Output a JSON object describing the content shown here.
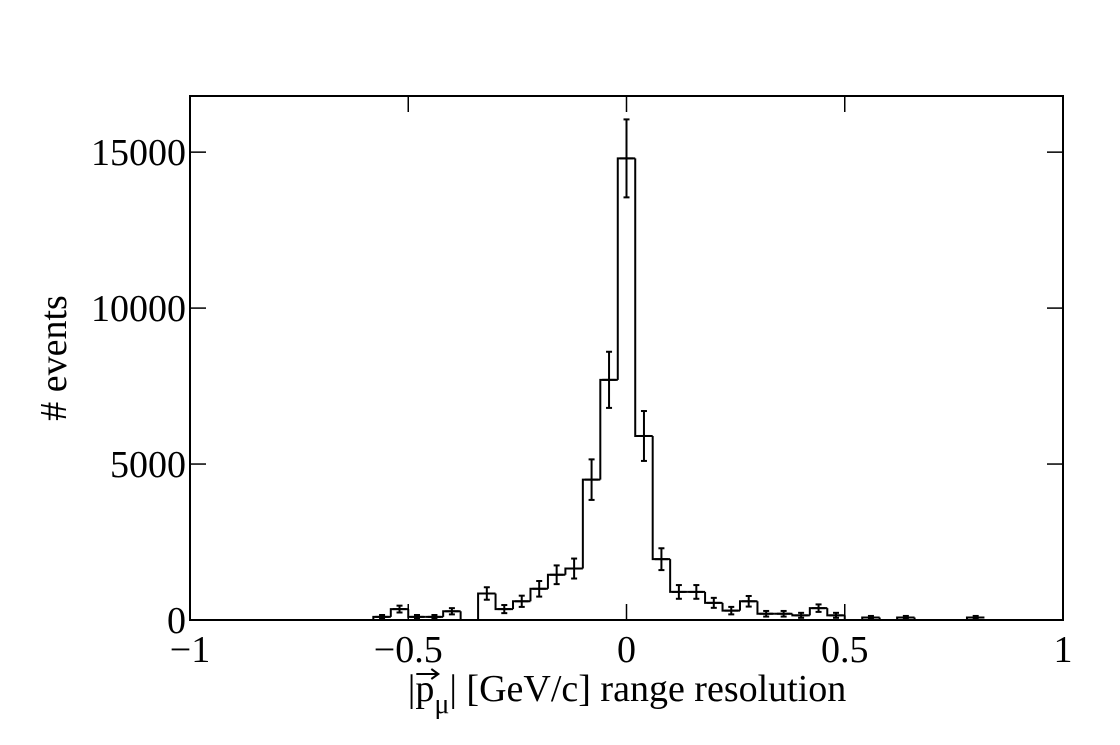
{
  "chart_data": {
    "type": "bar",
    "style": "step-histogram-with-error-bars",
    "title": "",
    "xlabel": "|p⃗μ| [GeV/c] range resolution",
    "xlabel_parts": {
      "prefix": "|",
      "vector": "p",
      "subscript": "μ",
      "suffix": "| [GeV/c] range resolution"
    },
    "ylabel": "# events",
    "xlim": [
      -1,
      1
    ],
    "ylim": [
      0,
      16800
    ],
    "x_ticks": [
      -1,
      -0.5,
      0,
      0.5,
      1
    ],
    "x_tick_labels": [
      "−1",
      "−0.5",
      "0",
      "0.5",
      "1"
    ],
    "y_ticks": [
      0,
      5000,
      10000,
      15000
    ],
    "y_tick_labels": [
      "0",
      "5000",
      "10000",
      "15000"
    ],
    "grid": false,
    "legend": "none",
    "bin_width": 0.04,
    "bins": [
      {
        "x": -0.56,
        "y": 100,
        "err": 60
      },
      {
        "x": -0.52,
        "y": 350,
        "err": 110
      },
      {
        "x": -0.48,
        "y": 100,
        "err": 60
      },
      {
        "x": -0.44,
        "y": 100,
        "err": 60
      },
      {
        "x": -0.4,
        "y": 280,
        "err": 100
      },
      {
        "x": -0.36,
        "y": 0,
        "err": 0
      },
      {
        "x": -0.32,
        "y": 850,
        "err": 200
      },
      {
        "x": -0.28,
        "y": 350,
        "err": 130
      },
      {
        "x": -0.24,
        "y": 600,
        "err": 180
      },
      {
        "x": -0.2,
        "y": 1000,
        "err": 250
      },
      {
        "x": -0.16,
        "y": 1450,
        "err": 300
      },
      {
        "x": -0.12,
        "y": 1650,
        "err": 320
      },
      {
        "x": -0.08,
        "y": 4500,
        "err": 650
      },
      {
        "x": -0.04,
        "y": 7700,
        "err": 900
      },
      {
        "x": 0.0,
        "y": 14800,
        "err": 1250
      },
      {
        "x": 0.04,
        "y": 5900,
        "err": 800
      },
      {
        "x": 0.08,
        "y": 1950,
        "err": 350
      },
      {
        "x": 0.12,
        "y": 900,
        "err": 220
      },
      {
        "x": 0.16,
        "y": 900,
        "err": 220
      },
      {
        "x": 0.2,
        "y": 550,
        "err": 160
      },
      {
        "x": 0.24,
        "y": 300,
        "err": 120
      },
      {
        "x": 0.28,
        "y": 600,
        "err": 170
      },
      {
        "x": 0.32,
        "y": 200,
        "err": 90
      },
      {
        "x": 0.36,
        "y": 200,
        "err": 90
      },
      {
        "x": 0.4,
        "y": 150,
        "err": 80
      },
      {
        "x": 0.44,
        "y": 380,
        "err": 120
      },
      {
        "x": 0.48,
        "y": 150,
        "err": 80
      },
      {
        "x": 0.52,
        "y": 0,
        "err": 0
      },
      {
        "x": 0.56,
        "y": 80,
        "err": 50
      },
      {
        "x": 0.6,
        "y": 0,
        "err": 0
      },
      {
        "x": 0.64,
        "y": 80,
        "err": 50
      },
      {
        "x": 0.68,
        "y": 0,
        "err": 0
      },
      {
        "x": 0.72,
        "y": 0,
        "err": 0
      },
      {
        "x": 0.76,
        "y": 0,
        "err": 0
      },
      {
        "x": 0.8,
        "y": 80,
        "err": 50
      }
    ]
  }
}
